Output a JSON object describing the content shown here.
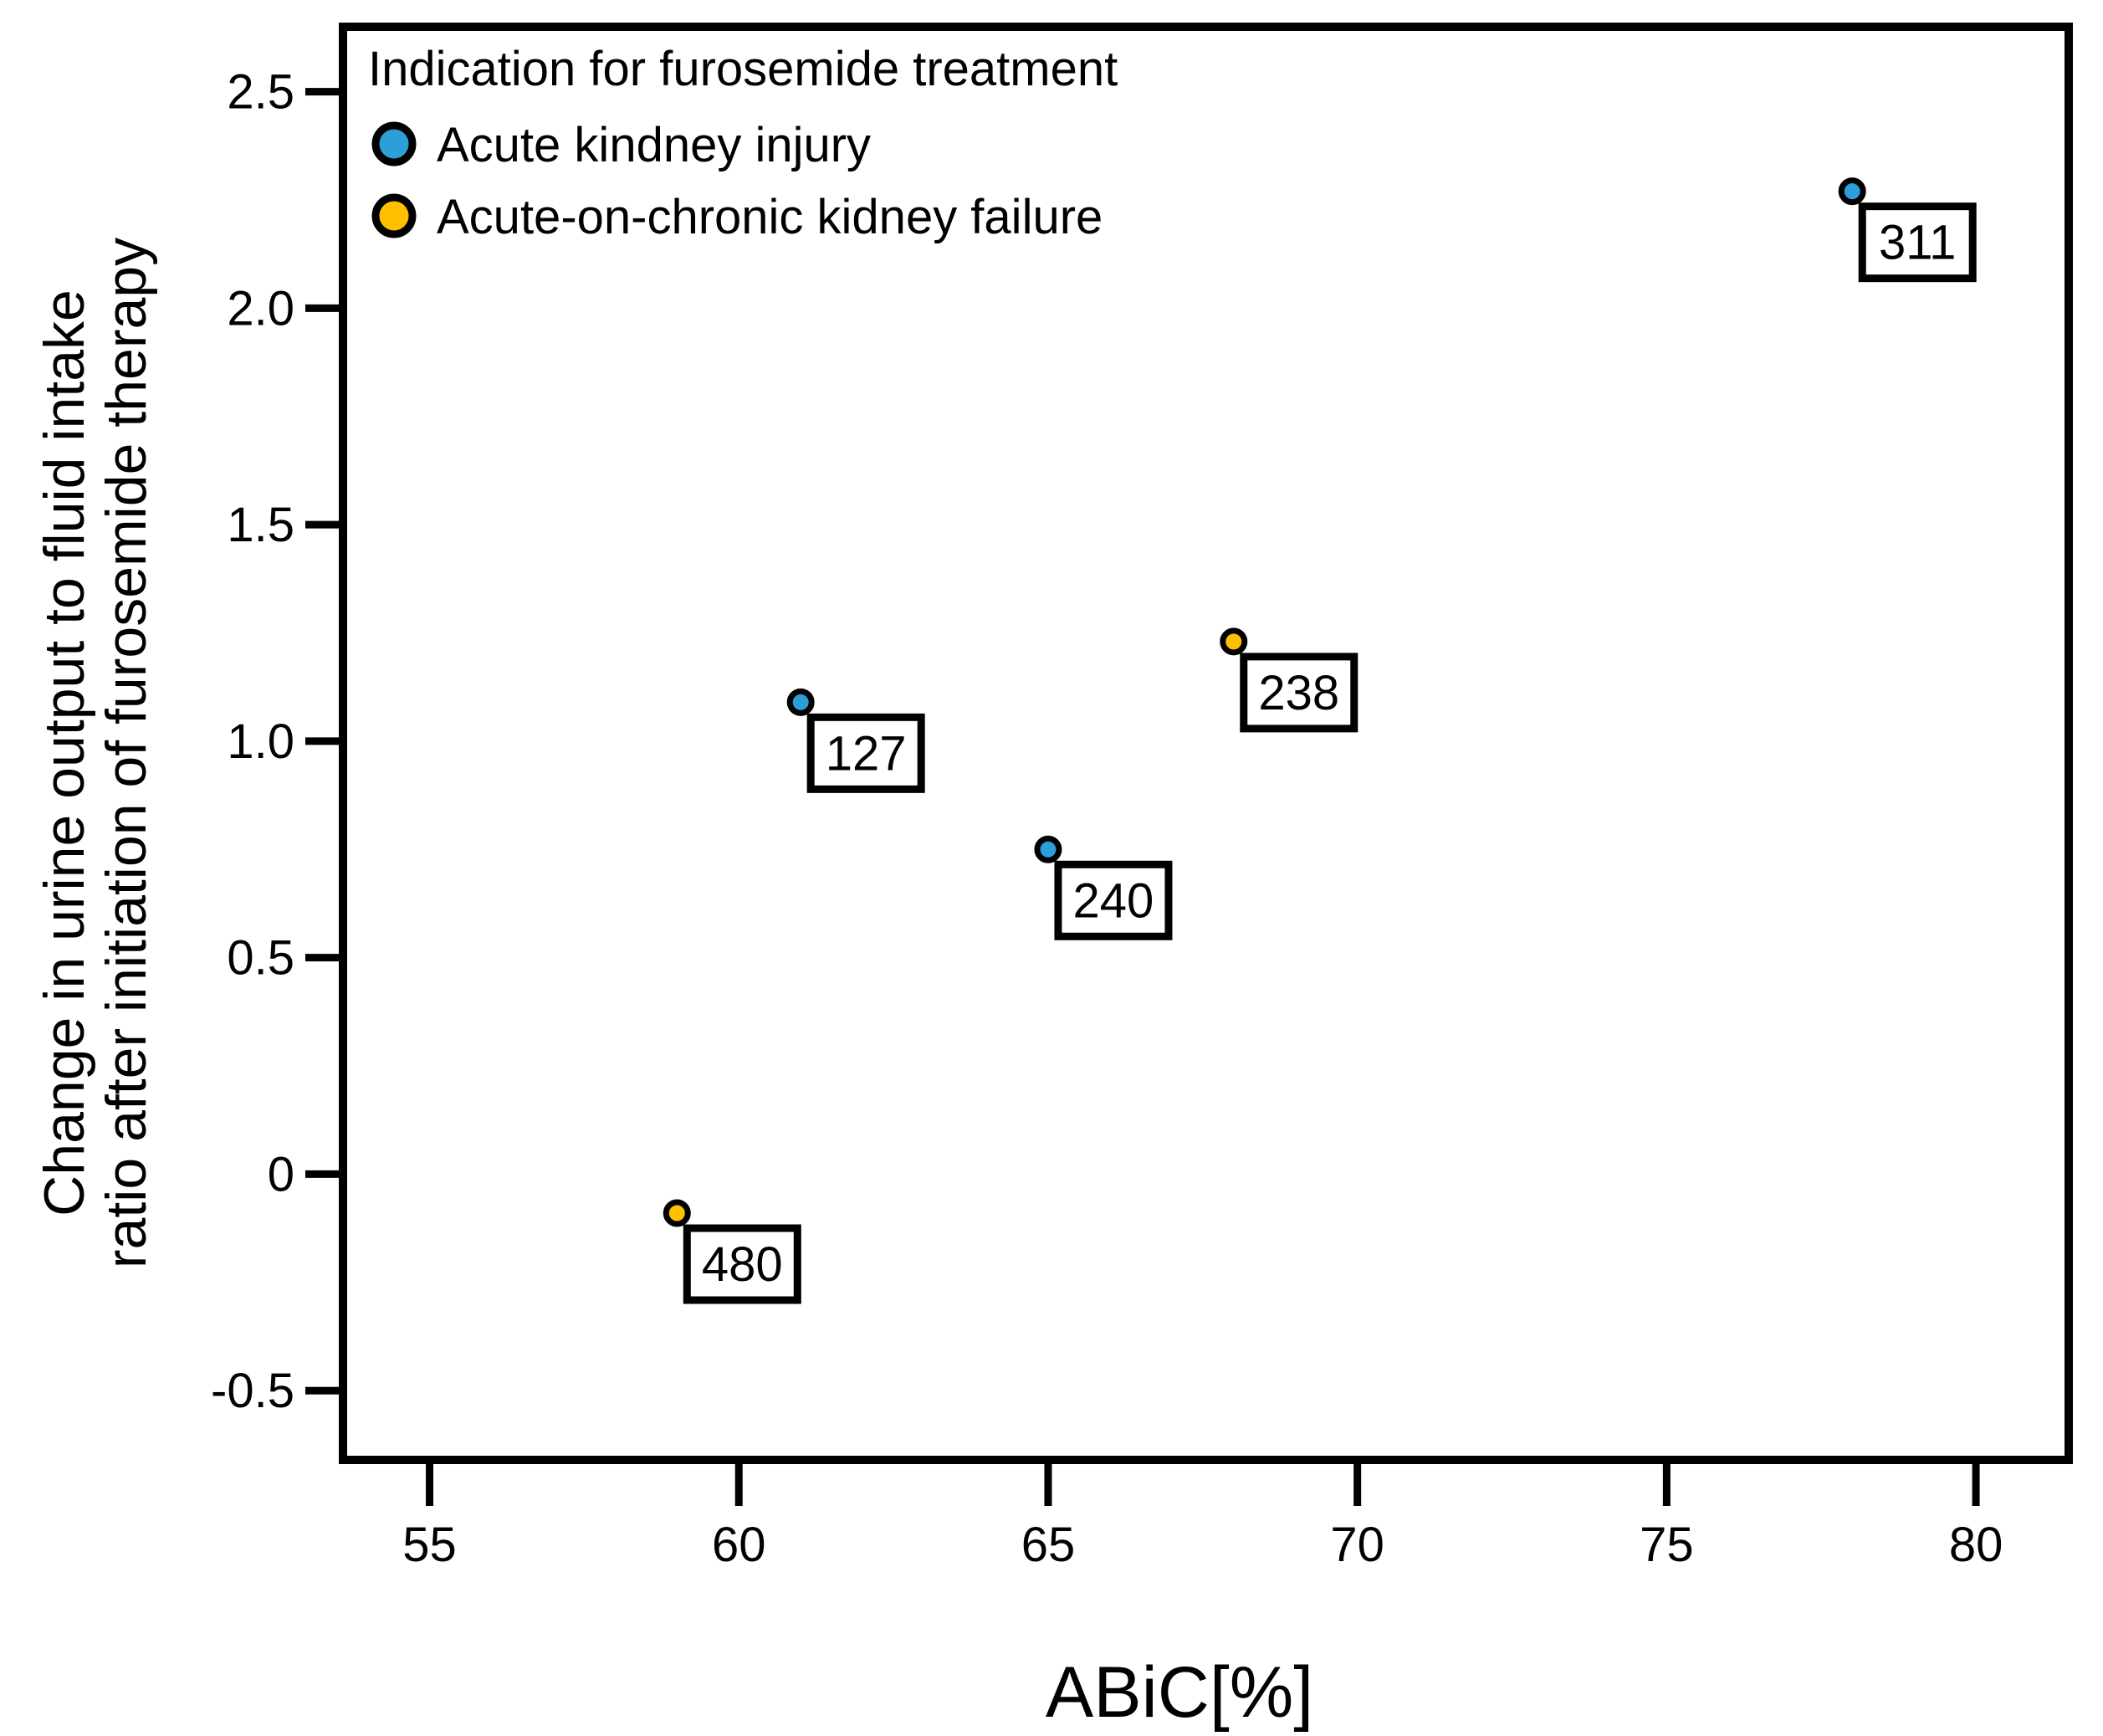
{
  "chart_data": {
    "type": "scatter",
    "title": "",
    "xlabel": "ABiC[%]",
    "ylabel_lines": [
      "Change in urine output to fluid intake",
      "ratio after initiation of furosemide therapy"
    ],
    "xlim": [
      53.6,
      81.5
    ],
    "ylim": [
      -0.66,
      2.65
    ],
    "grid": false,
    "x_ticks": [
      {
        "value": 55,
        "label": "55"
      },
      {
        "value": 60,
        "label": "60"
      },
      {
        "value": 65,
        "label": "65"
      },
      {
        "value": 70,
        "label": "70"
      },
      {
        "value": 75,
        "label": "75"
      },
      {
        "value": 80,
        "label": "80"
      }
    ],
    "y_ticks": [
      {
        "value": 2.5,
        "label": "2.5"
      },
      {
        "value": 2.0,
        "label": "2.0"
      },
      {
        "value": 1.5,
        "label": "1.5"
      },
      {
        "value": 1.0,
        "label": "1.0"
      },
      {
        "value": 0.5,
        "label": "0.5"
      },
      {
        "value": 0,
        "label": "0"
      },
      {
        "value": -0.5,
        "label": "-0.5"
      }
    ],
    "legend": {
      "title": "Indication for furosemide treatment",
      "position": "top-left inside plot",
      "items": [
        {
          "label": "Acute kindney injury",
          "color": "#2D9FD8"
        },
        {
          "label": "Acute-on-chronic kidney failure",
          "color": "#FFC000"
        }
      ]
    },
    "series": [
      {
        "name": "Acute kindney injury",
        "color": "#2D9FD8",
        "points": [
          {
            "label": "127",
            "x": 61,
            "y": 1.09
          },
          {
            "label": "240",
            "x": 65,
            "y": 0.75
          },
          {
            "label": "311",
            "x": 78,
            "y": 2.27
          }
        ]
      },
      {
        "name": "Acute-on-chronic kidney failure",
        "color": "#FFC000",
        "points": [
          {
            "label": "480",
            "x": 59,
            "y": -0.09
          },
          {
            "label": "238",
            "x": 68,
            "y": 1.23
          }
        ]
      }
    ],
    "colors": {
      "marker_outline": "#000000",
      "frame": "#000000",
      "background": "#FFFFFF",
      "label_box_fill": "#FFFFFF",
      "label_box_border": "#000000"
    }
  }
}
